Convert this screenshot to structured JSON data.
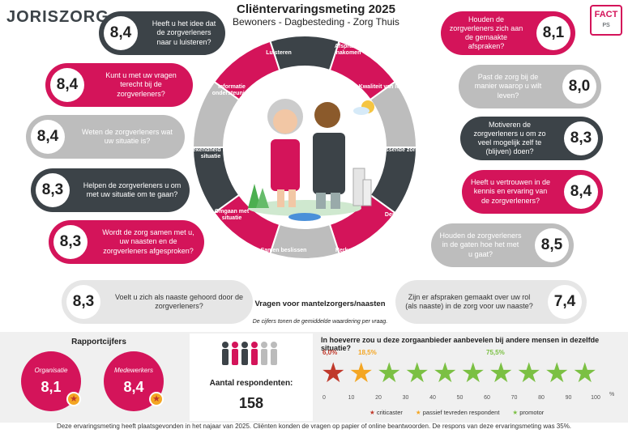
{
  "header": {
    "logo_text": "JORISZORG",
    "title": "Cliëntervaringsmeting 2025",
    "subtitle": "Bewoners - Dagbesteding - Zorg Thuis",
    "badge_letters": "FACT",
    "badge_sub": "PS"
  },
  "colors": {
    "pink": "#d4145a",
    "dark": "#3c4348",
    "gray": "#bdbdbd",
    "light": "#e6e6e6",
    "green": "#7bc043",
    "orange": "#f4a623",
    "red": "#c0392b"
  },
  "questions": [
    {
      "text": "Heeft u het idee dat de zorgverleners naar u luisteren?",
      "score": "8,4"
    },
    {
      "text": "Kunt u met uw vragen terecht bij de zorgverleners?",
      "score": "8,4"
    },
    {
      "text": "Weten de zorgverleners wat uw situatie is?",
      "score": "8,4"
    },
    {
      "text": "Helpen de zorgverleners u om met uw situatie om te gaan?",
      "score": "8,3"
    },
    {
      "text": "Wordt de zorg samen met u, uw naasten en de zorgverleners afgesproken?",
      "score": "8,3"
    },
    {
      "text": "Houden de zorgverleners zich aan de gemaakte afspraken?",
      "score": "8,1"
    },
    {
      "text": "Past de zorg bij de manier waarop u wilt leven?",
      "score": "8,0"
    },
    {
      "text": "Motiveren de zorgverleners u om zo veel mogelijk zelf te (blijven) doen?",
      "score": "8,3"
    },
    {
      "text": "Heeft u vertrouwen in de kennis en ervaring van de zorgverleners?",
      "score": "8,4"
    },
    {
      "text": "Houden de zorgverleners in de gaten hoe het met u gaat?",
      "score": "8,5"
    }
  ],
  "donut_labels": [
    "Luisteren",
    "Afspraken nakomen",
    "Kwaliteit van leven",
    "Passende zorg",
    "Deskundigheid",
    "Herkennen veranderingen",
    "Samen beslissen",
    "Omgaan met situatie",
    "Bekendheid met situatie",
    "Informatie ondersteuning"
  ],
  "caregiver": {
    "q1": {
      "text": "Voelt u zich als naaste gehoord door de zorgverleners?",
      "score": "8,3"
    },
    "q2": {
      "text": "Zijn er afspraken gemaakt over uw rol (als naaste) in de zorg voor uw naaste?",
      "score": "7,4"
    },
    "title": "Vragen voor mantelzorgers/naasten",
    "note": "De cijfers tonen de gemiddelde waardering per vraag."
  },
  "report": {
    "title": "Rapportcijfers",
    "org_label": "Organisatie",
    "org_score": "8,1",
    "emp_label": "Medewerkers",
    "emp_score": "8,4"
  },
  "respondents": {
    "label": "Aantal respondenten:",
    "count": "158"
  },
  "nps": {
    "question": "In hoeverre zou u deze zorgaanbieder aanbevelen bij andere mensen in dezelfde situatie?",
    "critic_pct": "6,0%",
    "passive_pct": "18,5%",
    "promoter_pct": "75,5%",
    "critic": 6.0,
    "passive": 18.5,
    "promoter": 75.5,
    "ticks": [
      "0",
      "10",
      "20",
      "30",
      "40",
      "50",
      "60",
      "70",
      "80",
      "90",
      "100"
    ],
    "unit": "%",
    "legend": [
      "criticaster",
      "passief tevreden respondent",
      "promotor"
    ]
  },
  "footer": "Deze ervaringsmeting heeft plaatsgevonden in het najaar van 2025. Cliënten konden de vragen op papier of online beantwoorden. De respons van deze ervaringsmeting was 35%."
}
